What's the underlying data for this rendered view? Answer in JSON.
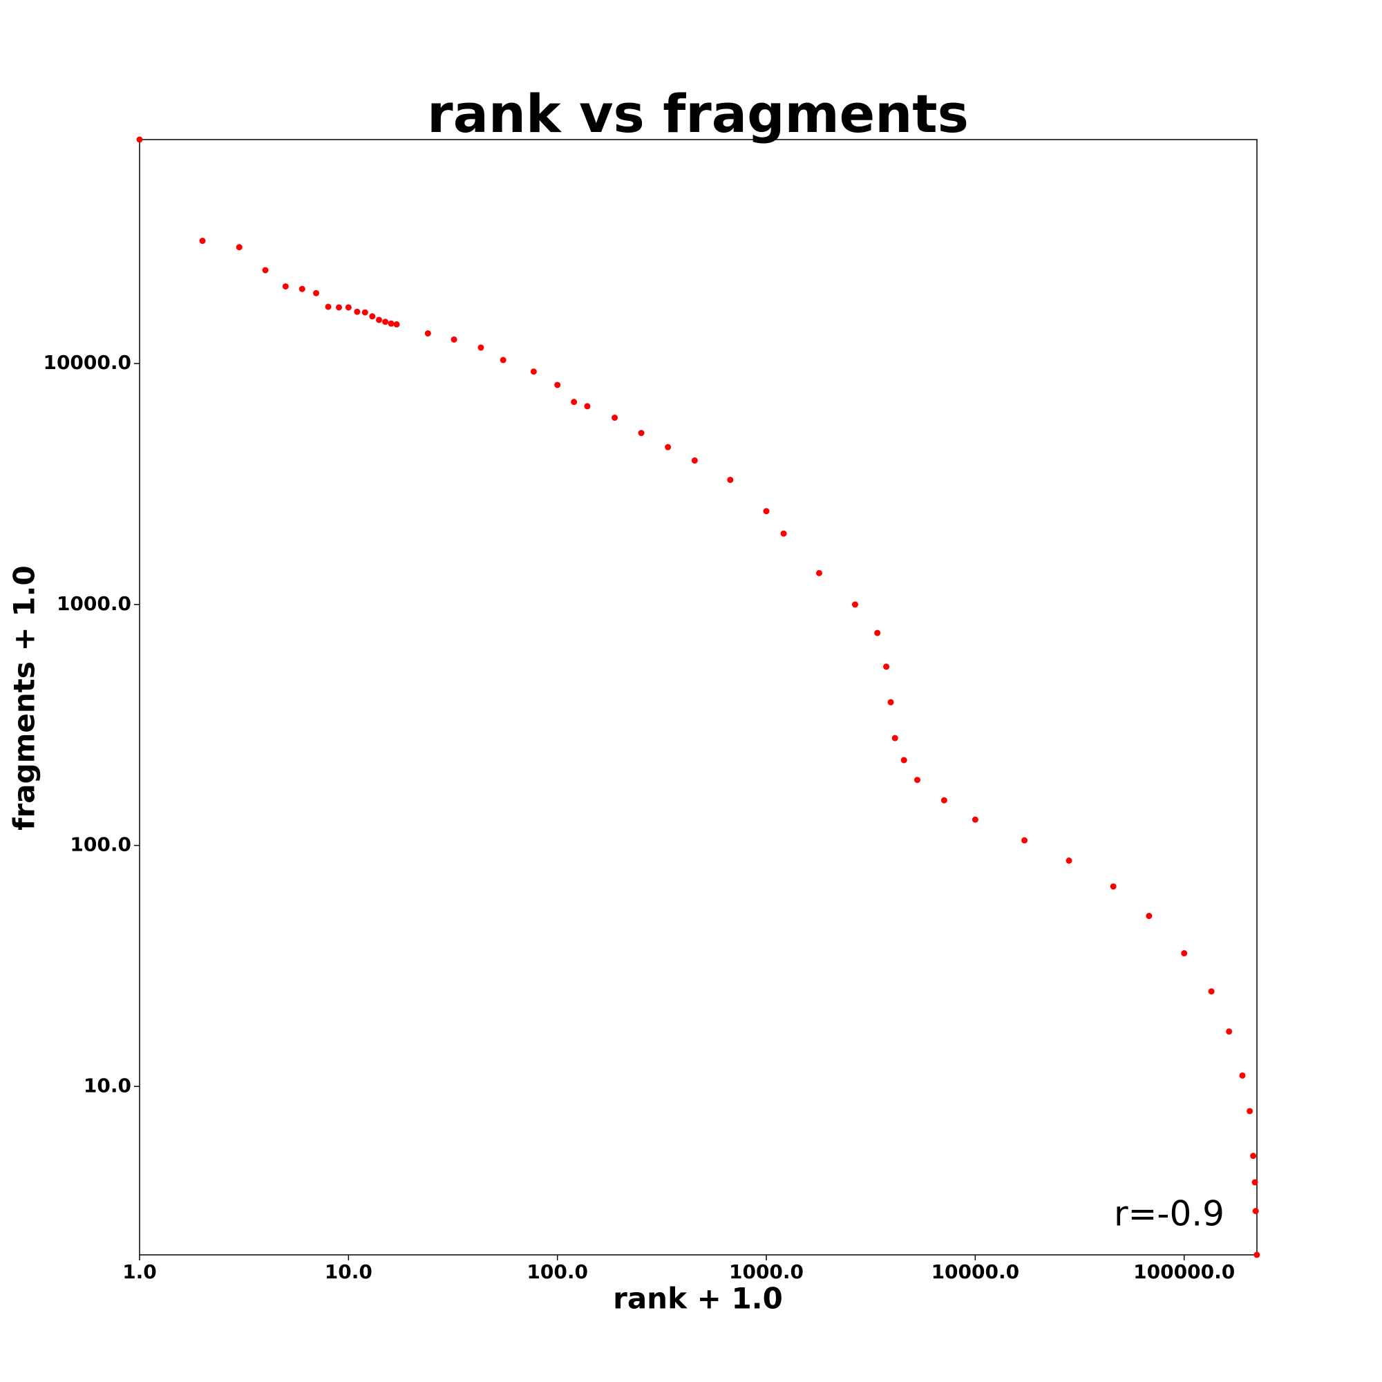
{
  "chart_data": {
    "type": "scatter",
    "title": "rank vs fragments",
    "xlabel": "rank + 1.0",
    "ylabel": "fragments + 1.0",
    "annotation": "r=-0.9",
    "x_log": true,
    "y_log": true,
    "color": "#ff0000",
    "xlim": [
      1,
      223000
    ],
    "ylim": [
      2,
      85000
    ],
    "xticks": [
      {
        "value": 1,
        "label": "1.0"
      },
      {
        "value": 10,
        "label": "10.0"
      },
      {
        "value": 100,
        "label": "100.0"
      },
      {
        "value": 1000,
        "label": "1000.0"
      },
      {
        "value": 10000,
        "label": "10000.0"
      },
      {
        "value": 100000,
        "label": "100000.0"
      }
    ],
    "yticks": [
      {
        "value": 10,
        "label": "10.0"
      },
      {
        "value": 100,
        "label": "100.0"
      },
      {
        "value": 1000,
        "label": "1000.0"
      },
      {
        "value": 10000,
        "label": "10000.0"
      }
    ],
    "x": [
      1,
      2,
      3,
      4,
      5,
      6,
      7,
      8,
      9,
      10,
      11,
      12,
      13,
      14,
      15,
      16,
      17,
      24,
      32,
      43,
      55,
      77,
      100,
      120,
      139,
      188,
      252,
      338,
      454,
      672,
      1000,
      1210,
      1790,
      2660,
      3400,
      3750,
      3940,
      4130,
      4560,
      5280,
      7100,
      10000,
      17200,
      28100,
      45800,
      67900,
      100000,
      135000,
      164000,
      190000,
      206000,
      214000,
      218000,
      220000,
      222800
    ],
    "y": [
      85000,
      32300,
      30400,
      24400,
      20900,
      20400,
      19600,
      17200,
      17100,
      17100,
      16400,
      16300,
      15700,
      15170,
      14900,
      14650,
      14540,
      13340,
      12580,
      11650,
      10340,
      9260,
      8150,
      6930,
      6650,
      5960,
      5150,
      4500,
      3960,
      3290,
      2440,
      1970,
      1350,
      1000,
      762,
      552,
      393,
      279,
      226,
      187,
      154,
      128,
      105,
      86.5,
      67.6,
      51,
      35.7,
      24.8,
      16.9,
      11.1,
      7.9,
      5.15,
      4.0,
      3.04,
      2.0
    ]
  }
}
